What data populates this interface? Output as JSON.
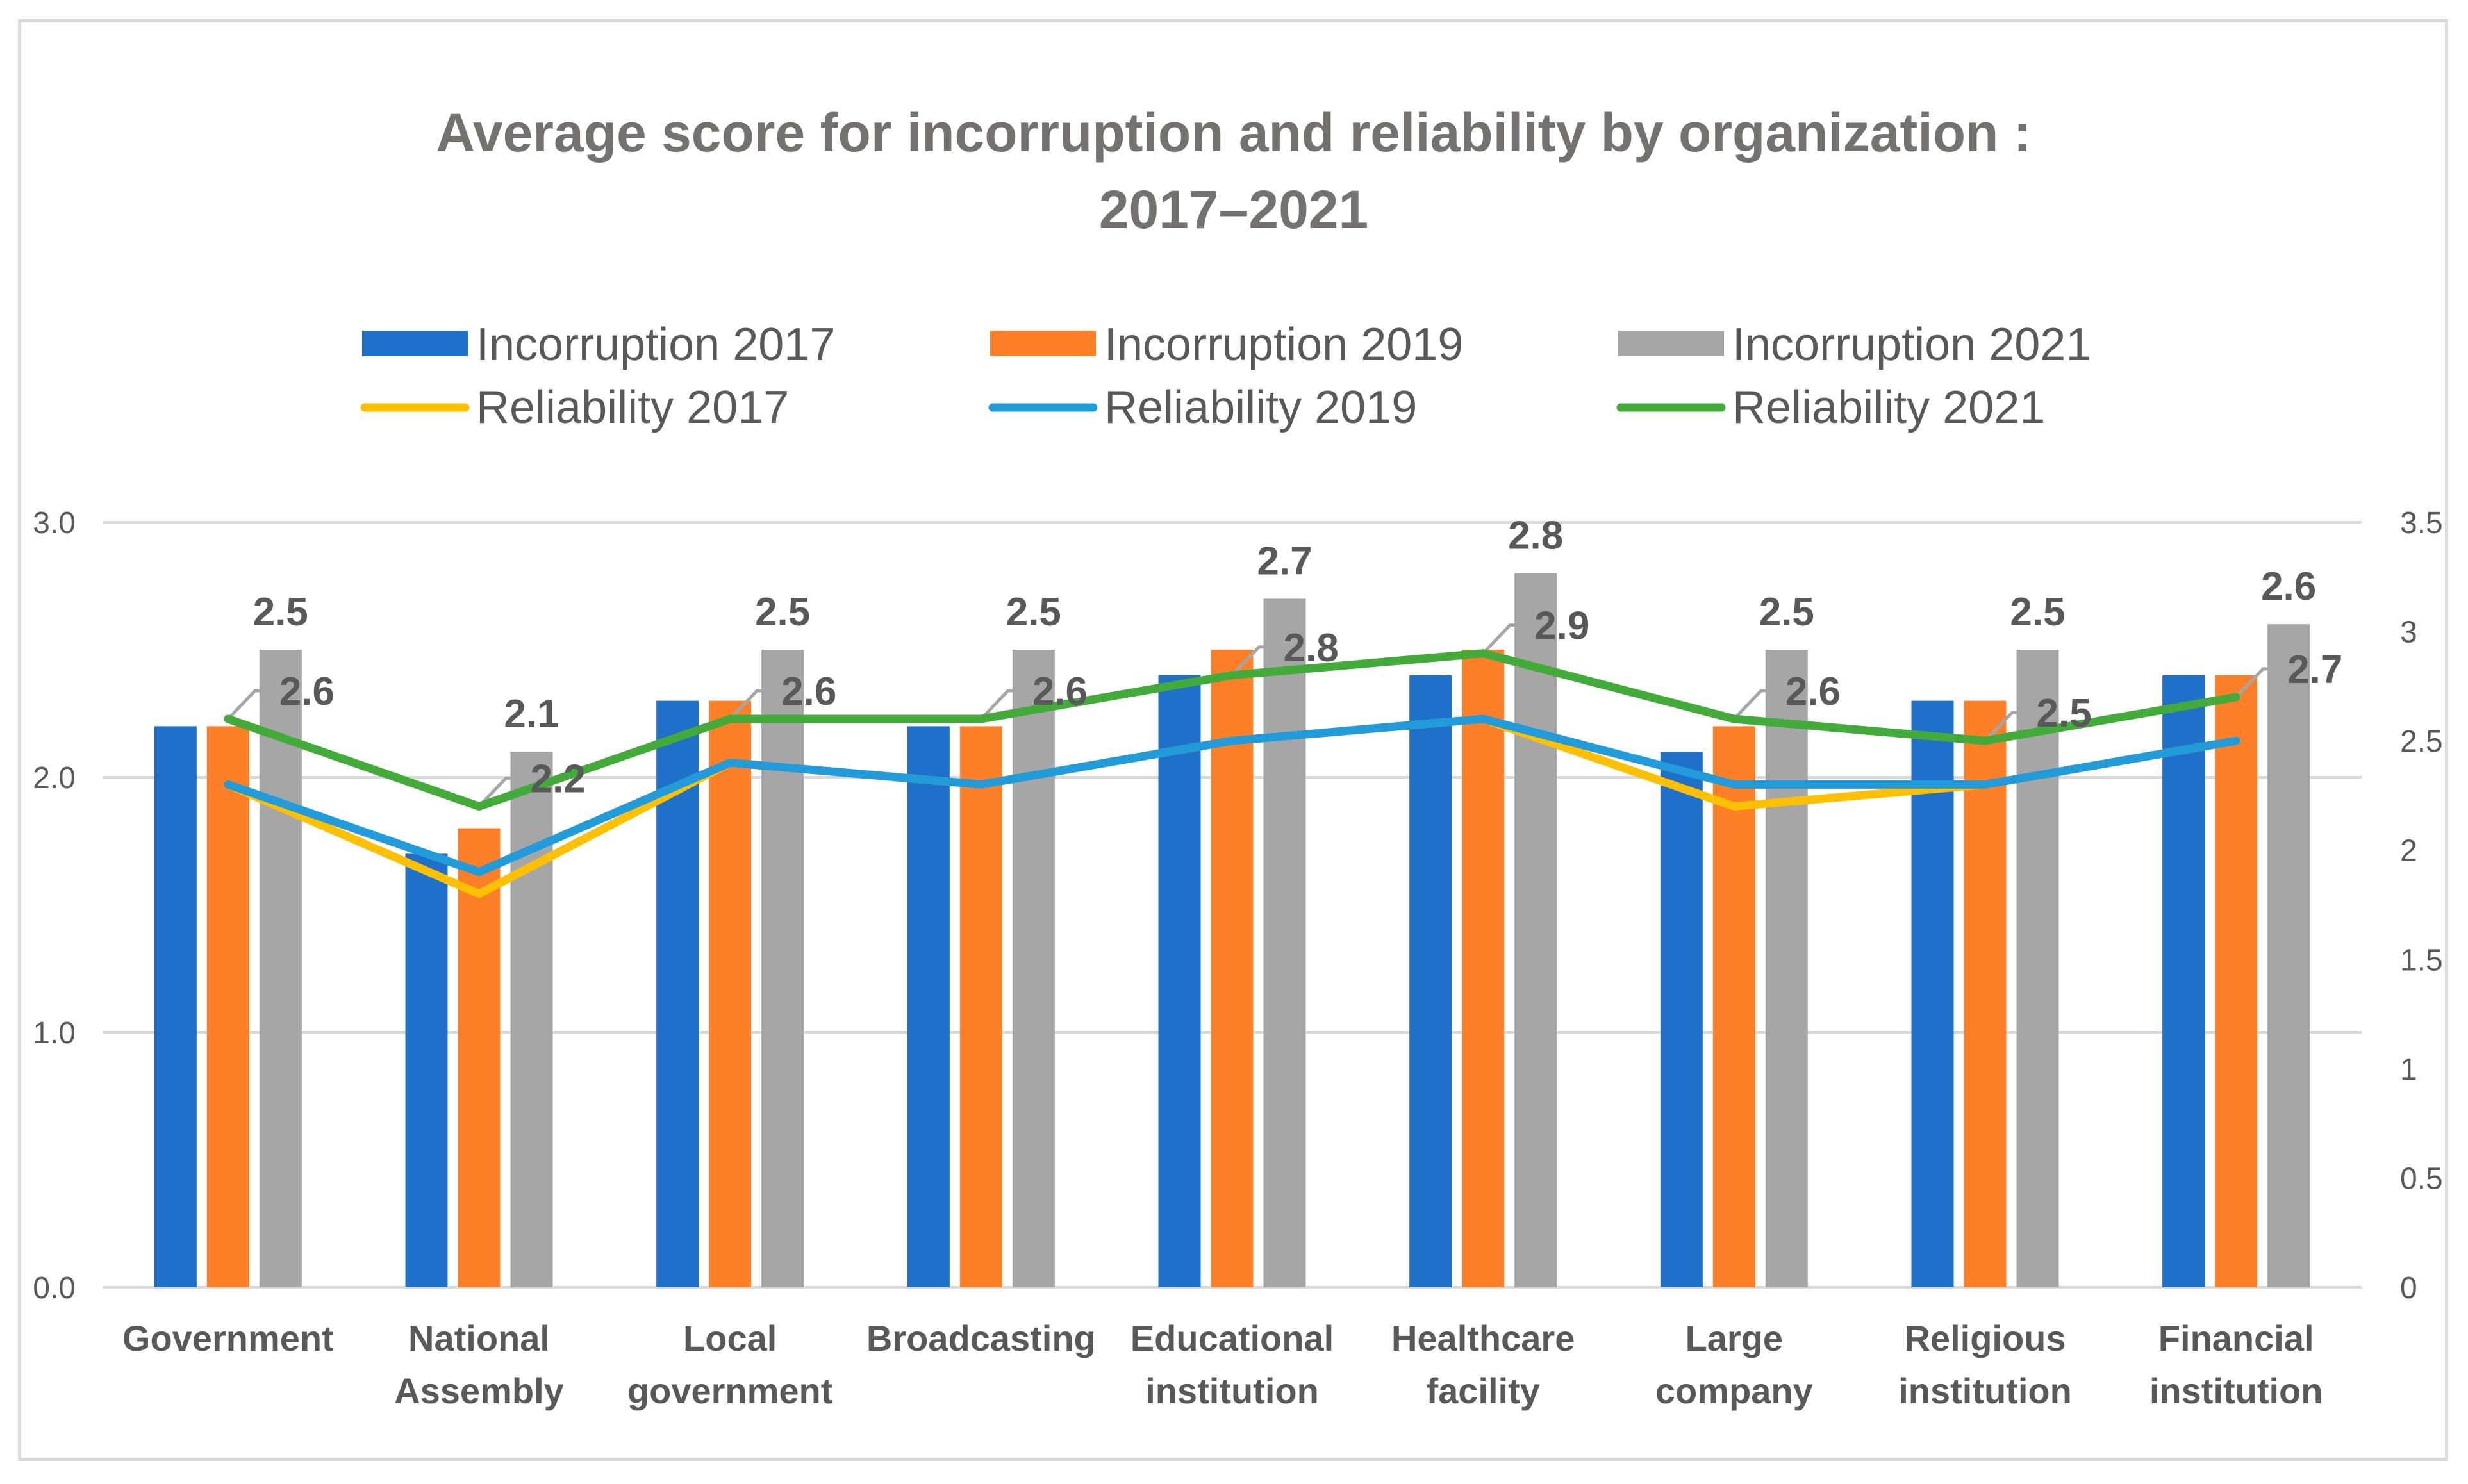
{
  "chart_data": {
    "type": "bar",
    "title_lines": [
      "Average score for incorruption and reliability by organization :",
      "2017–2021"
    ],
    "categories": [
      [
        "Government"
      ],
      [
        "National",
        "Assembly"
      ],
      [
        "Local",
        "government"
      ],
      [
        "Broadcasting"
      ],
      [
        "Educational",
        "institution"
      ],
      [
        "Healthcare",
        "facility"
      ],
      [
        "Large",
        "company"
      ],
      [
        "Religious",
        "institution"
      ],
      [
        "Financial",
        "institution"
      ]
    ],
    "bar_series": [
      {
        "name": "Incorruption 2017",
        "color": "#1f70c8",
        "values": [
          2.2,
          1.7,
          2.3,
          2.2,
          2.4,
          2.4,
          2.1,
          2.3,
          2.4
        ]
      },
      {
        "name": "Incorruption 2019",
        "color": "#fd7f27",
        "values": [
          2.2,
          1.8,
          2.3,
          2.2,
          2.5,
          2.5,
          2.2,
          2.3,
          2.4
        ]
      },
      {
        "name": "Incorruption 2021",
        "color": "#a6a6a6",
        "values": [
          2.5,
          2.1,
          2.5,
          2.5,
          2.7,
          2.8,
          2.5,
          2.5,
          2.6
        ]
      }
    ],
    "line_series": [
      {
        "name": "Reliability 2017",
        "color": "#ffc000",
        "values": [
          2.3,
          1.8,
          2.4,
          2.3,
          2.5,
          2.6,
          2.2,
          2.3,
          2.5
        ]
      },
      {
        "name": "Reliability 2019",
        "color": "#219bd9",
        "values": [
          2.3,
          1.9,
          2.4,
          2.3,
          2.5,
          2.6,
          2.3,
          2.3,
          2.5
        ]
      },
      {
        "name": "Reliability 2021",
        "color": "#42ab3a",
        "values": [
          2.6,
          2.2,
          2.6,
          2.6,
          2.8,
          2.9,
          2.6,
          2.5,
          2.7
        ]
      }
    ],
    "bar_labels": [
      "2.5",
      "2.1",
      "2.5",
      "2.5",
      "2.7",
      "2.8",
      "2.5",
      "2.5",
      "2.6"
    ],
    "line_labels": [
      "2.6",
      "2.2",
      "2.6",
      "2.6",
      "2.8",
      "2.9",
      "2.6",
      "2.5",
      "2.7"
    ],
    "y_left": {
      "min": 0,
      "max": 3,
      "ticks": [
        0,
        1,
        2,
        3
      ],
      "tick_labels": [
        "0.0",
        "1.0",
        "2.0",
        "3.0"
      ]
    },
    "y_right": {
      "min": 0,
      "max": 3.5,
      "ticks": [
        0,
        0.5,
        1,
        1.5,
        2,
        2.5,
        3,
        3.5
      ],
      "tick_labels": [
        "0",
        "0.5",
        "1",
        "1.5",
        "2",
        "2.5",
        "3",
        "3.5"
      ]
    },
    "grid": true,
    "legend_position": "top"
  }
}
